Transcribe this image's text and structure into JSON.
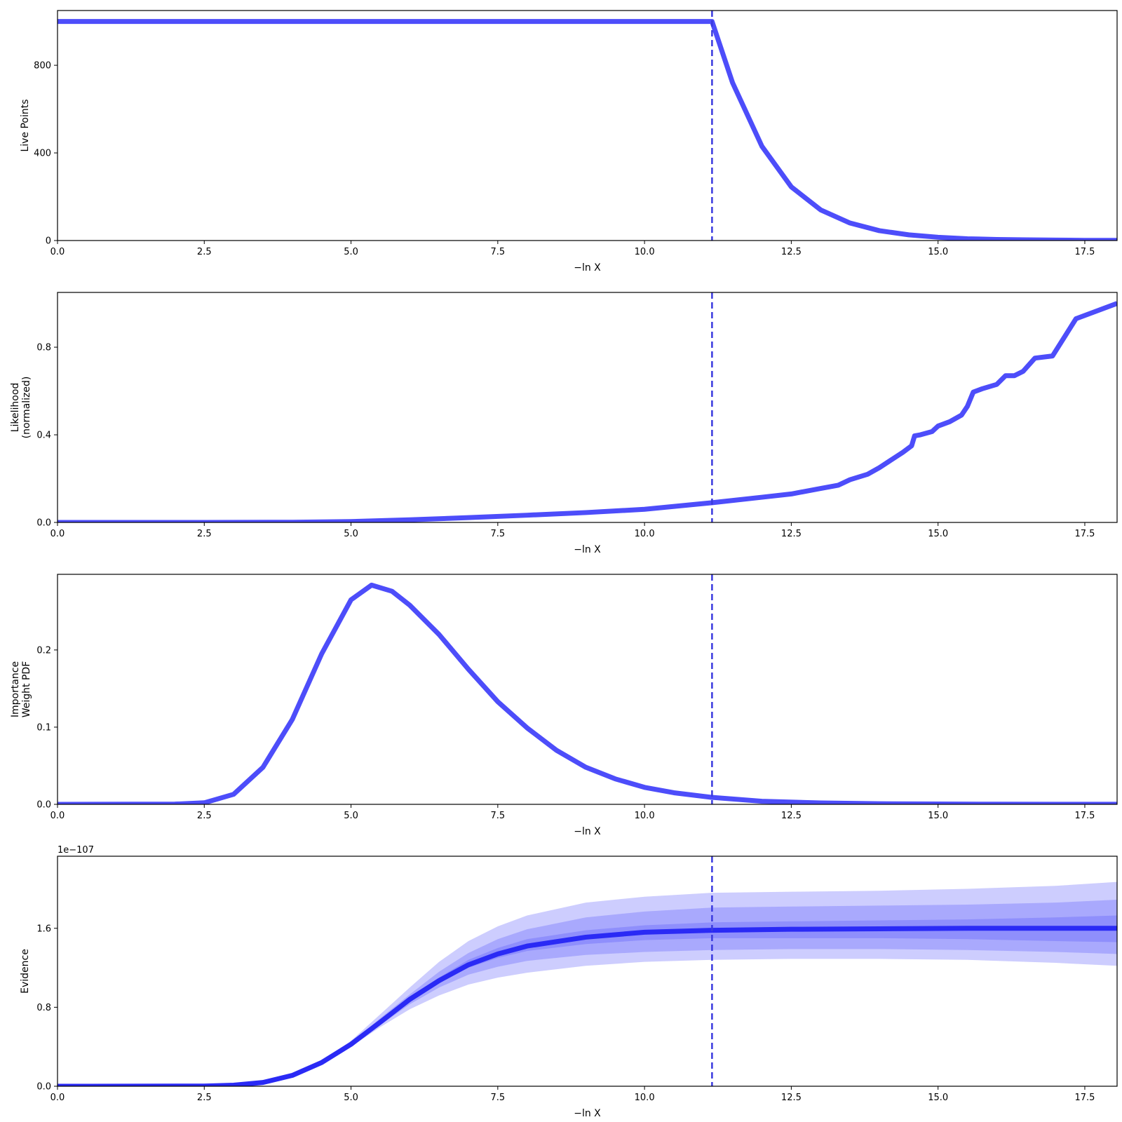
{
  "chart_data": [
    {
      "type": "line",
      "xlabel": "−ln X",
      "ylabel": [
        "Live Points"
      ],
      "xlim": [
        0,
        18.05
      ],
      "ylim": [
        0,
        1050
      ],
      "xticks": [
        0.0,
        2.5,
        5.0,
        7.5,
        10.0,
        12.5,
        15.0,
        17.5
      ],
      "xtick_labels": [
        "0.0",
        "2.5",
        "5.0",
        "7.5",
        "10.0",
        "12.5",
        "15.0",
        "17.5"
      ],
      "yticks": [
        0,
        400,
        800
      ],
      "ytick_labels": [
        "0",
        "400",
        "800"
      ],
      "vline_x": 11.15,
      "series": [
        {
          "x": [
            0,
            11.15,
            11.5,
            12.0,
            12.5,
            13.0,
            13.5,
            14.0,
            14.5,
            15.0,
            15.5,
            16.0,
            16.5,
            17.0,
            17.5,
            18.05
          ],
          "y": [
            1000,
            1000,
            720,
            430,
            245,
            140,
            80,
            45,
            26,
            15,
            8,
            5,
            3,
            2,
            1,
            1
          ]
        }
      ]
    },
    {
      "type": "line",
      "xlabel": "−ln X",
      "ylabel": [
        "Likelihood",
        "(normalized)"
      ],
      "xlim": [
        0,
        18.05
      ],
      "ylim": [
        0,
        1.05
      ],
      "xticks": [
        0.0,
        2.5,
        5.0,
        7.5,
        10.0,
        12.5,
        15.0,
        17.5
      ],
      "xtick_labels": [
        "0.0",
        "2.5",
        "5.0",
        "7.5",
        "10.0",
        "12.5",
        "15.0",
        "17.5"
      ],
      "yticks": [
        0.0,
        0.4,
        0.8
      ],
      "ytick_labels": [
        "0.0",
        "0.4",
        "0.8"
      ],
      "vline_x": 11.15,
      "series": [
        {
          "x": [
            0,
            2.5,
            4.0,
            5.0,
            6.0,
            7.0,
            8.0,
            9.0,
            10.0,
            11.15,
            12.0,
            12.5,
            13.0,
            13.3,
            13.5,
            13.8,
            14.0,
            14.2,
            14.4,
            14.55,
            14.6,
            14.7,
            14.9,
            15.0,
            15.2,
            15.4,
            15.5,
            15.6,
            15.75,
            16.0,
            16.15,
            16.3,
            16.45,
            16.65,
            16.95,
            17.35,
            18.05
          ],
          "y": [
            0,
            0,
            0.001,
            0.004,
            0.012,
            0.022,
            0.033,
            0.045,
            0.06,
            0.09,
            0.115,
            0.13,
            0.155,
            0.17,
            0.195,
            0.22,
            0.25,
            0.285,
            0.32,
            0.35,
            0.395,
            0.4,
            0.415,
            0.44,
            0.46,
            0.49,
            0.53,
            0.595,
            0.61,
            0.63,
            0.67,
            0.67,
            0.69,
            0.75,
            0.76,
            0.93,
            1.0
          ]
        }
      ]
    },
    {
      "type": "line",
      "xlabel": "−ln X",
      "ylabel": [
        "Importance",
        "Weight PDF"
      ],
      "xlim": [
        0,
        18.05
      ],
      "ylim": [
        0,
        0.298
      ],
      "xticks": [
        0.0,
        2.5,
        5.0,
        7.5,
        10.0,
        12.5,
        15.0,
        17.5
      ],
      "xtick_labels": [
        "0.0",
        "2.5",
        "5.0",
        "7.5",
        "10.0",
        "12.5",
        "15.0",
        "17.5"
      ],
      "yticks": [
        0.0,
        0.1,
        0.2
      ],
      "ytick_labels": [
        "0.0",
        "0.1",
        "0.2"
      ],
      "vline_x": 11.15,
      "series": [
        {
          "x": [
            0,
            2.0,
            2.5,
            3.0,
            3.5,
            4.0,
            4.5,
            5.0,
            5.35,
            5.7,
            6.0,
            6.5,
            7.0,
            7.5,
            8.0,
            8.5,
            9.0,
            9.5,
            10.0,
            10.5,
            11.15,
            12.0,
            13.0,
            14.0,
            15.0,
            16.0,
            17.0,
            18.05
          ],
          "y": [
            0,
            0.0003,
            0.002,
            0.013,
            0.048,
            0.11,
            0.195,
            0.265,
            0.284,
            0.276,
            0.258,
            0.22,
            0.175,
            0.133,
            0.099,
            0.07,
            0.048,
            0.033,
            0.022,
            0.015,
            0.009,
            0.004,
            0.0018,
            0.0008,
            0.0004,
            0.0002,
            0.0001,
            0.0001
          ]
        }
      ]
    },
    {
      "type": "line",
      "xlabel": "−ln X",
      "ylabel": [
        "Evidence"
      ],
      "offset_text": "1e−107",
      "xlim": [
        0,
        18.05
      ],
      "ylim": [
        0,
        2.33
      ],
      "xticks": [
        0.0,
        2.5,
        5.0,
        7.5,
        10.0,
        12.5,
        15.0,
        17.5
      ],
      "xtick_labels": [
        "0.0",
        "2.5",
        "5.0",
        "7.5",
        "10.0",
        "12.5",
        "15.0",
        "17.5"
      ],
      "yticks": [
        0.0,
        0.8,
        1.6
      ],
      "ytick_labels": [
        "0.0",
        "0.8",
        "1.6"
      ],
      "vline_x": 11.15,
      "bands": [
        {
          "x": [
            0,
            2.5,
            3.0,
            3.5,
            4.0,
            4.5,
            5.0,
            5.5,
            6.0,
            6.5,
            7.0,
            7.5,
            8.0,
            9.0,
            10.0,
            11.15,
            12.5,
            14.0,
            15.5,
            17.0,
            18.05
          ],
          "lower": [
            0,
            0.002,
            0.01,
            0.035,
            0.1,
            0.22,
            0.4,
            0.6,
            0.78,
            0.92,
            1.03,
            1.1,
            1.15,
            1.22,
            1.26,
            1.28,
            1.29,
            1.29,
            1.28,
            1.25,
            1.22
          ],
          "upper": [
            0,
            0.002,
            0.012,
            0.042,
            0.12,
            0.26,
            0.46,
            0.73,
            1.0,
            1.26,
            1.47,
            1.62,
            1.73,
            1.86,
            1.92,
            1.96,
            1.97,
            1.98,
            2.0,
            2.03,
            2.07
          ]
        },
        {
          "x": [
            0,
            2.5,
            3.0,
            3.5,
            4.0,
            4.5,
            5.0,
            5.5,
            6.0,
            6.5,
            7.0,
            7.5,
            8.0,
            9.0,
            10.0,
            11.15,
            12.5,
            14.0,
            15.5,
            17.0,
            18.05
          ],
          "lower": [
            0,
            0.002,
            0.011,
            0.037,
            0.105,
            0.23,
            0.41,
            0.62,
            0.83,
            1.0,
            1.13,
            1.21,
            1.27,
            1.33,
            1.36,
            1.38,
            1.39,
            1.39,
            1.38,
            1.36,
            1.34
          ],
          "upper": [
            0,
            0.002,
            0.012,
            0.04,
            0.115,
            0.25,
            0.44,
            0.69,
            0.93,
            1.16,
            1.35,
            1.49,
            1.59,
            1.71,
            1.77,
            1.81,
            1.82,
            1.83,
            1.84,
            1.86,
            1.89
          ]
        },
        {
          "x": [
            0,
            2.5,
            3.0,
            3.5,
            4.0,
            4.5,
            5.0,
            5.5,
            6.0,
            6.5,
            7.0,
            7.5,
            8.0,
            9.0,
            10.0,
            11.15,
            12.5,
            14.0,
            15.5,
            17.0,
            18.05
          ],
          "lower": [
            0,
            0.002,
            0.011,
            0.038,
            0.108,
            0.235,
            0.42,
            0.64,
            0.86,
            1.05,
            1.2,
            1.3,
            1.37,
            1.44,
            1.48,
            1.5,
            1.5,
            1.5,
            1.49,
            1.47,
            1.46
          ],
          "upper": [
            0,
            0.002,
            0.011,
            0.039,
            0.112,
            0.245,
            0.43,
            0.67,
            0.9,
            1.1,
            1.28,
            1.4,
            1.49,
            1.58,
            1.63,
            1.66,
            1.67,
            1.68,
            1.69,
            1.71,
            1.73
          ]
        }
      ],
      "series": [
        {
          "x": [
            0,
            2.5,
            3.0,
            3.5,
            4.0,
            4.5,
            5.0,
            5.5,
            6.0,
            6.5,
            7.0,
            7.5,
            8.0,
            9.0,
            10.0,
            11.15,
            12.5,
            14.0,
            15.5,
            17.0,
            18.05
          ],
          "y": [
            0,
            0.002,
            0.011,
            0.038,
            0.11,
            0.24,
            0.425,
            0.65,
            0.88,
            1.07,
            1.23,
            1.34,
            1.42,
            1.51,
            1.56,
            1.58,
            1.59,
            1.595,
            1.6,
            1.6,
            1.6
          ]
        }
      ]
    }
  ],
  "colors": {
    "line": "#4d4dfa",
    "vline": "#3a3adf",
    "band": "#4d4dfa",
    "evidence_line": "#2a2af5"
  }
}
